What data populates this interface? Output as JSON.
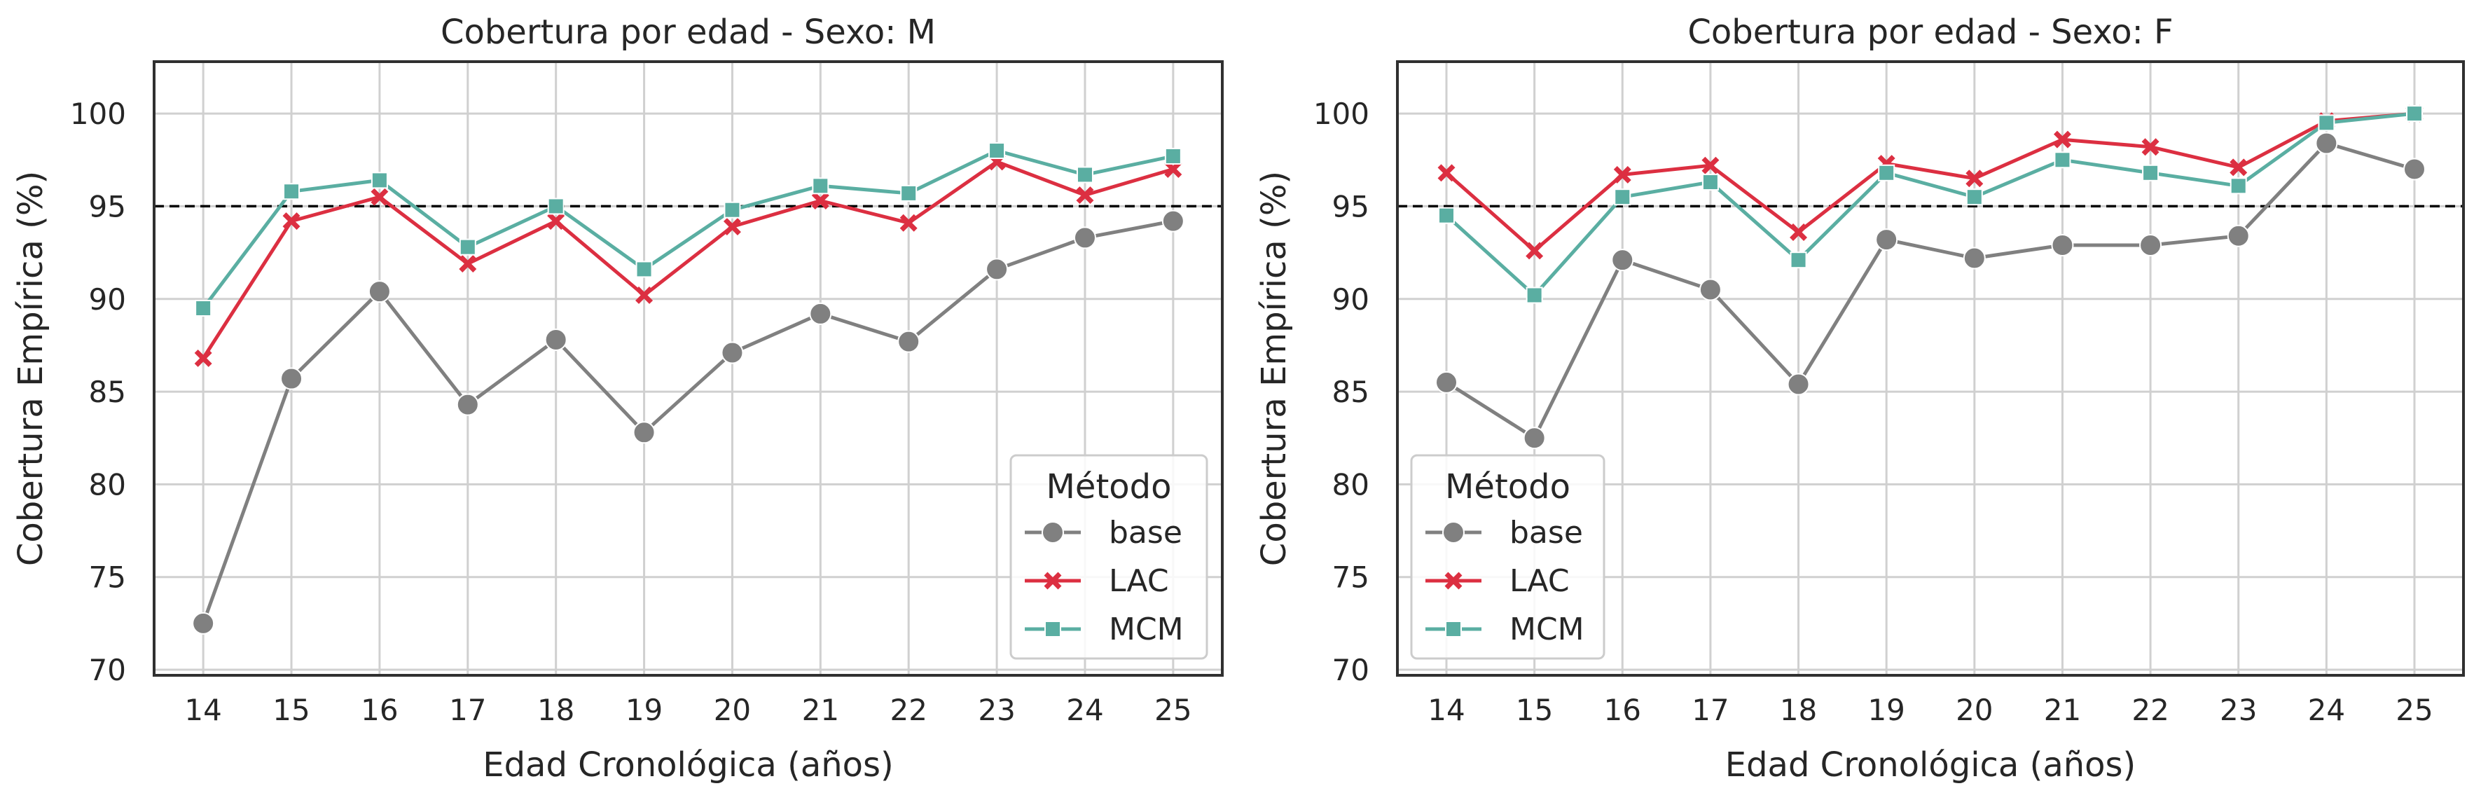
{
  "figure": {
    "reference_line": 95,
    "colors": {
      "base": "#808080",
      "LAC": "#dc2f41",
      "MCM": "#5aaea2",
      "grid": "#d0d0d0",
      "frame": "#303030",
      "reference": "#000000"
    }
  },
  "chart_data": [
    {
      "type": "line",
      "title": "Cobertura por edad - Sexo: M",
      "xlabel": "Edad Cronológica (años)",
      "ylabel": "Cobertura Empírica (%)",
      "ylim": [
        69.7,
        102.8
      ],
      "yticks": [
        70,
        75,
        80,
        85,
        90,
        95,
        100
      ],
      "categories": [
        "14",
        "15",
        "16",
        "17",
        "18",
        "19",
        "20",
        "21",
        "22",
        "23",
        "24",
        "25"
      ],
      "grid": true,
      "legend": {
        "title": "Método",
        "position": "lower-right"
      },
      "series": [
        {
          "name": "base",
          "marker": "circle",
          "values": [
            72.5,
            85.7,
            90.4,
            84.3,
            87.8,
            82.8,
            87.1,
            89.2,
            87.7,
            91.6,
            93.3,
            94.2
          ]
        },
        {
          "name": "LAC",
          "marker": "x",
          "values": [
            86.8,
            94.2,
            95.5,
            91.9,
            94.2,
            90.2,
            93.9,
            95.3,
            94.1,
            97.4,
            95.6,
            97.0
          ]
        },
        {
          "name": "MCM",
          "marker": "square",
          "values": [
            89.5,
            95.8,
            96.4,
            92.8,
            95.0,
            91.6,
            94.8,
            96.1,
            95.7,
            98.0,
            96.7,
            97.7
          ]
        }
      ]
    },
    {
      "type": "line",
      "title": "Cobertura por edad - Sexo: F",
      "xlabel": "Edad Cronológica (años)",
      "ylabel": "Cobertura Empírica (%)",
      "ylim": [
        69.7,
        102.8
      ],
      "yticks": [
        70,
        75,
        80,
        85,
        90,
        95,
        100
      ],
      "categories": [
        "14",
        "15",
        "16",
        "17",
        "18",
        "19",
        "20",
        "21",
        "22",
        "23",
        "24",
        "25"
      ],
      "grid": true,
      "legend": {
        "title": "Método",
        "position": "lower-left"
      },
      "series": [
        {
          "name": "base",
          "marker": "circle",
          "values": [
            85.5,
            82.5,
            92.1,
            90.5,
            85.4,
            93.2,
            92.2,
            92.9,
            92.9,
            93.4,
            98.4,
            97.0
          ]
        },
        {
          "name": "LAC",
          "marker": "x",
          "values": [
            96.8,
            92.6,
            96.7,
            97.2,
            93.6,
            97.3,
            96.5,
            98.6,
            98.2,
            97.1,
            99.6,
            100.0
          ]
        },
        {
          "name": "MCM",
          "marker": "square",
          "values": [
            94.5,
            90.2,
            95.5,
            96.3,
            92.1,
            96.8,
            95.5,
            97.5,
            96.8,
            96.1,
            99.5,
            100.0
          ]
        }
      ]
    }
  ]
}
